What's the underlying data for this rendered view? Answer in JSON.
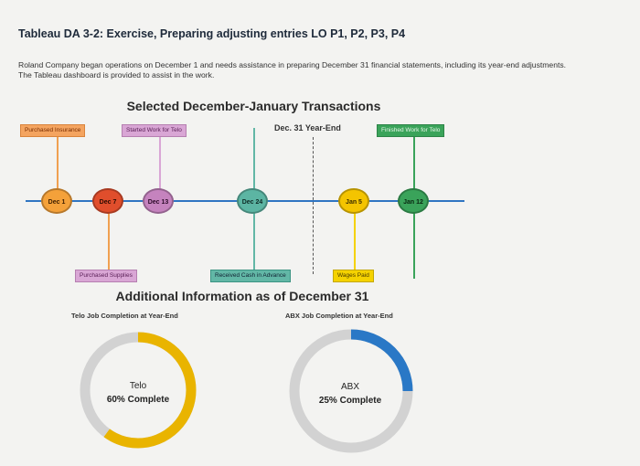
{
  "header": {
    "title": "Tableau DA 3-2: Exercise, Preparing adjusting entries LO P1, P2, P3, P4",
    "intro": "Roland Company began operations on December 1 and needs assistance in preparing December 31 financial statements, including its year-end adjustments. The Tableau dashboard is provided to assist in the work."
  },
  "timeline": {
    "title": "Selected December-January Transactions",
    "year_end_label": "Dec. 31 Year-End",
    "top_tags": {
      "purchased_insurance": "Purchased Insurance",
      "started_work": "Started Work for Telo",
      "finished_work": "Finished Work for Telo"
    },
    "bottom_tags": {
      "purchased_supplies": "Purchased Supplies",
      "received_cash": "Received Cash in Advance",
      "wages_paid": "Wages Paid"
    },
    "nodes": {
      "dec1": "Dec 1",
      "dec7": "Dec 7",
      "dec13": "Dec 13",
      "dec24": "Dec 24",
      "jan5": "Jan 5",
      "jan12": "Jan 12"
    },
    "colors": {
      "axis": "#2f75c2",
      "orange": "#f4a13a",
      "red": "#e04e2c",
      "purple": "#c583be",
      "teal": "#5cb5a3",
      "yellow": "#f4c400",
      "green": "#3aa35a"
    }
  },
  "additional": {
    "title": "Additional Information as of December 31",
    "telo": {
      "heading": "Telo Job Completion at Year-End",
      "name": "Telo",
      "status": "60% Complete",
      "percent": 60,
      "color": "#e9b400"
    },
    "abx": {
      "heading": "ABX Job Completion at Year-End",
      "name": "ABX",
      "status": "25% Complete",
      "percent": 25,
      "color": "#2a78c6"
    }
  }
}
